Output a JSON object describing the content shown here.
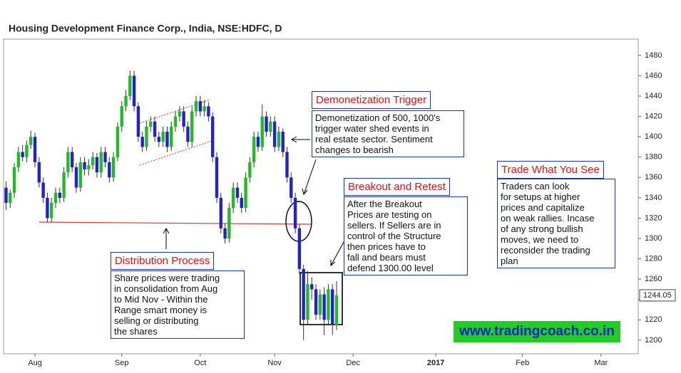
{
  "chart_data": {
    "type": "candlestick",
    "title": "Housing Development Finance Corp., India, NSE:HDFC, D",
    "up_color": "#22bb22",
    "down_color": "#2222cc",
    "candles": [
      [
        1350,
        1356,
        1328,
        1335
      ],
      [
        1335,
        1348,
        1330,
        1345
      ],
      [
        1345,
        1374,
        1340,
        1370
      ],
      [
        1370,
        1390,
        1365,
        1385
      ],
      [
        1385,
        1392,
        1376,
        1380
      ],
      [
        1380,
        1396,
        1375,
        1392
      ],
      [
        1392,
        1406,
        1388,
        1400
      ],
      [
        1400,
        1404,
        1370,
        1375
      ],
      [
        1375,
        1380,
        1350,
        1355
      ],
      [
        1355,
        1360,
        1335,
        1340
      ],
      [
        1340,
        1345,
        1316,
        1320
      ],
      [
        1320,
        1340,
        1316,
        1335
      ],
      [
        1335,
        1350,
        1330,
        1345
      ],
      [
        1345,
        1350,
        1335,
        1340
      ],
      [
        1340,
        1370,
        1336,
        1365
      ],
      [
        1365,
        1390,
        1360,
        1385
      ],
      [
        1385,
        1390,
        1365,
        1370
      ],
      [
        1370,
        1374,
        1345,
        1350
      ],
      [
        1350,
        1380,
        1346,
        1375
      ],
      [
        1375,
        1380,
        1362,
        1368
      ],
      [
        1368,
        1378,
        1362,
        1372
      ],
      [
        1372,
        1385,
        1368,
        1380
      ],
      [
        1380,
        1384,
        1360,
        1365
      ],
      [
        1365,
        1390,
        1360,
        1385
      ],
      [
        1385,
        1390,
        1370,
        1375
      ],
      [
        1375,
        1380,
        1355,
        1360
      ],
      [
        1360,
        1385,
        1356,
        1380
      ],
      [
        1380,
        1414,
        1376,
        1410
      ],
      [
        1410,
        1435,
        1405,
        1430
      ],
      [
        1430,
        1446,
        1425,
        1440
      ],
      [
        1440,
        1465,
        1436,
        1460
      ],
      [
        1460,
        1465,
        1425,
        1430
      ],
      [
        1430,
        1434,
        1395,
        1400
      ],
      [
        1400,
        1405,
        1385,
        1390
      ],
      [
        1390,
        1415,
        1386,
        1410
      ],
      [
        1410,
        1420,
        1405,
        1415
      ],
      [
        1415,
        1420,
        1395,
        1400
      ],
      [
        1400,
        1405,
        1390,
        1395
      ],
      [
        1395,
        1410,
        1390,
        1405
      ],
      [
        1405,
        1410,
        1385,
        1390
      ],
      [
        1390,
        1415,
        1386,
        1410
      ],
      [
        1410,
        1425,
        1405,
        1420
      ],
      [
        1420,
        1430,
        1415,
        1425
      ],
      [
        1425,
        1430,
        1405,
        1410
      ],
      [
        1410,
        1415,
        1390,
        1395
      ],
      [
        1395,
        1430,
        1390,
        1425
      ],
      [
        1425,
        1440,
        1420,
        1435
      ],
      [
        1435,
        1440,
        1420,
        1425
      ],
      [
        1425,
        1436,
        1420,
        1430
      ],
      [
        1430,
        1434,
        1415,
        1420
      ],
      [
        1420,
        1424,
        1375,
        1380
      ],
      [
        1380,
        1385,
        1335,
        1340
      ],
      [
        1340,
        1345,
        1305,
        1310
      ],
      [
        1310,
        1315,
        1295,
        1300
      ],
      [
        1300,
        1335,
        1296,
        1330
      ],
      [
        1330,
        1355,
        1325,
        1350
      ],
      [
        1350,
        1355,
        1335,
        1340
      ],
      [
        1340,
        1345,
        1325,
        1330
      ],
      [
        1330,
        1365,
        1326,
        1360
      ],
      [
        1360,
        1380,
        1355,
        1375
      ],
      [
        1375,
        1405,
        1370,
        1400
      ],
      [
        1400,
        1405,
        1385,
        1390
      ],
      [
        1390,
        1432,
        1386,
        1420
      ],
      [
        1420,
        1425,
        1400,
        1405
      ],
      [
        1405,
        1420,
        1400,
        1415
      ],
      [
        1415,
        1420,
        1385,
        1390
      ],
      [
        1390,
        1410,
        1386,
        1405
      ],
      [
        1405,
        1408,
        1380,
        1385
      ],
      [
        1385,
        1390,
        1355,
        1360
      ],
      [
        1360,
        1365,
        1335,
        1340
      ],
      [
        1340,
        1345,
        1305,
        1310
      ],
      [
        1310,
        1314,
        1265,
        1270
      ],
      [
        1270,
        1274,
        1200,
        1220
      ],
      [
        1220,
        1268,
        1215,
        1255
      ],
      [
        1255,
        1262,
        1240,
        1250
      ],
      [
        1250,
        1255,
        1220,
        1225
      ],
      [
        1225,
        1250,
        1220,
        1245
      ],
      [
        1245,
        1252,
        1205,
        1220
      ],
      [
        1220,
        1255,
        1216,
        1250
      ],
      [
        1250,
        1255,
        1205,
        1215
      ],
      [
        1215,
        1258,
        1210,
        1244.05
      ]
    ],
    "categories": [
      null,
      null,
      null,
      null,
      null,
      null,
      null,
      null,
      null,
      null,
      null,
      null,
      null,
      null,
      null,
      null,
      null,
      null,
      null,
      null,
      null,
      null,
      null,
      null,
      null,
      null,
      null,
      null,
      null,
      null,
      null,
      null,
      null,
      null,
      null,
      null,
      null,
      null,
      null,
      null,
      null,
      null,
      null,
      null,
      null,
      null,
      null,
      null,
      null,
      null,
      null,
      null,
      null,
      null,
      null,
      null,
      null,
      null,
      null,
      null,
      null,
      null,
      null,
      null,
      null,
      null,
      null,
      null,
      null,
      null,
      null,
      null,
      null,
      null,
      null,
      null,
      null,
      null,
      null,
      null,
      null
    ],
    "xlim": [
      -0.6,
      153
    ],
    "xticks": [
      {
        "value": 7,
        "label": "Aug"
      },
      {
        "value": 28,
        "label": "Sep"
      },
      {
        "value": 47,
        "label": "Oct"
      },
      {
        "value": 65,
        "label": "Nov"
      },
      {
        "value": 84,
        "label": "Dec"
      },
      {
        "value": 104,
        "label": "2017"
      },
      {
        "value": 125,
        "label": "Feb"
      },
      {
        "value": 144,
        "label": "Mar"
      }
    ],
    "ylim": [
      1188,
      1496
    ],
    "yticks": [
      1200,
      1220,
      1240,
      1260,
      1280,
      1300,
      1320,
      1340,
      1360,
      1380,
      1400,
      1420,
      1440,
      1460,
      1480
    ],
    "last_price": 1244.05,
    "annotations": [
      {
        "title": "Distribution Process",
        "lines": [
          "Share prices were trading",
          "in consolidation from Aug",
          "to Mid Nov - Within the",
          "Range smart money is",
          "selling or distributing",
          "the shares"
        ]
      },
      {
        "title": "Demonetization Trigger",
        "lines": [
          "Demonetization of 500, 1000's",
          "trigger water shed events in",
          "real estate sector. Sentiment",
          "changes to bearish"
        ]
      },
      {
        "title": "Breakout and Retest",
        "lines": [
          "After the Breakout",
          "Prices are testing on",
          "sellers. If Sellers are in",
          "control of the Structure",
          "then prices have to",
          "fall and bears must",
          "defend 1300.00 level"
        ]
      },
      {
        "title": "Trade What You See",
        "lines": [
          "Traders can look",
          "for setups at higher",
          "prices and capitalize",
          "on weak rallies. Incase",
          "of any strong bullish",
          "moves, we need to",
          "reconsider the trading",
          "plan"
        ]
      }
    ],
    "website": "www.tradingcoach.co.in"
  }
}
